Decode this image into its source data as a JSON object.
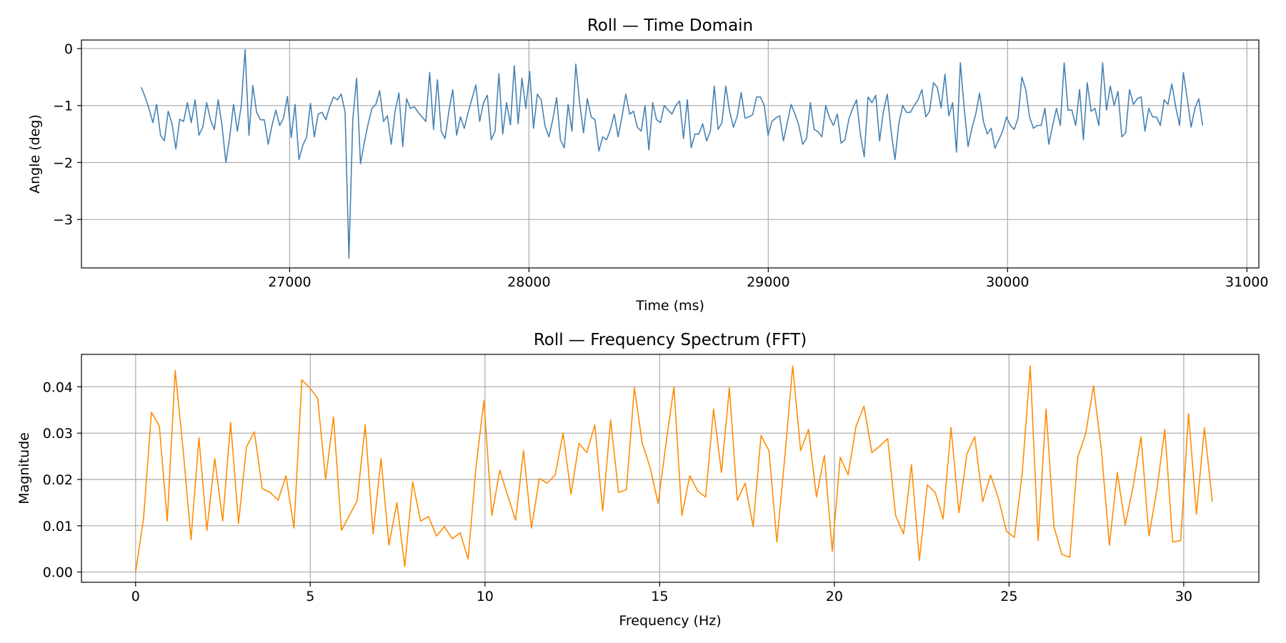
{
  "chart_data": [
    {
      "type": "line",
      "title": "Roll — Time Domain",
      "xlabel": "Time (ms)",
      "ylabel": "Angle (deg)",
      "xlim": [
        26130,
        31050
      ],
      "ylim": [
        -3.85,
        0.15
      ],
      "grid": true,
      "xticks": [
        27000,
        28000,
        29000,
        30000,
        31000
      ],
      "xtick_labels": [
        "27000",
        "28000",
        "29000",
        "30000",
        "31000"
      ],
      "yticks": [
        0,
        -1,
        -2,
        -3
      ],
      "ytick_labels": [
        "0",
        "−1",
        "−2",
        "−3"
      ],
      "color": "#4682b4",
      "series": [
        {
          "name": "Roll",
          "x_start": 26380,
          "x_end": 30815,
          "values": [
            -0.68,
            -0.85,
            -1.05,
            -1.3,
            -0.98,
            -1.52,
            -1.62,
            -1.1,
            -1.32,
            -1.76,
            -1.24,
            -1.28,
            -0.95,
            -1.3,
            -0.9,
            -1.52,
            -1.38,
            -0.95,
            -1.25,
            -1.42,
            -0.9,
            -1.35,
            -2.0,
            -1.55,
            -0.98,
            -1.45,
            -1.0,
            -0.02,
            -1.52,
            -0.65,
            -1.12,
            -1.25,
            -1.25,
            -1.68,
            -1.35,
            -1.08,
            -1.35,
            -1.22,
            -0.84,
            -1.56,
            -0.98,
            -1.95,
            -1.7,
            -1.55,
            -0.96,
            -1.55,
            -1.15,
            -1.12,
            -1.25,
            -1.02,
            -0.85,
            -0.9,
            -0.8,
            -1.12,
            -3.68,
            -1.25,
            -0.52,
            -2.02,
            -1.65,
            -1.32,
            -1.05,
            -0.98,
            -0.74,
            -1.28,
            -1.18,
            -1.68,
            -1.1,
            -0.78,
            -1.72,
            -0.88,
            -1.05,
            -1.02,
            -1.12,
            -1.2,
            -1.28,
            -0.42,
            -1.42,
            -0.55,
            -1.45,
            -1.58,
            -1.1,
            -0.72,
            -1.52,
            -1.2,
            -1.4,
            -1.12,
            -0.88,
            -0.64,
            -1.28,
            -0.95,
            -0.82,
            -1.6,
            -1.45,
            -0.44,
            -1.5,
            -0.95,
            -1.34,
            -0.3,
            -1.32,
            -0.52,
            -1.05,
            -0.4,
            -1.4,
            -0.8,
            -0.9,
            -1.36,
            -1.55,
            -1.25,
            -0.86,
            -1.6,
            -1.74,
            -0.98,
            -1.45,
            -0.27,
            -0.95,
            -1.48,
            -0.88,
            -1.2,
            -1.25,
            -1.8,
            -1.55,
            -1.6,
            -1.42,
            -1.15,
            -1.55,
            -1.2,
            -0.8,
            -1.15,
            -1.1,
            -1.38,
            -1.45,
            -1.0,
            -1.78,
            -0.95,
            -1.25,
            -1.3,
            -1.0,
            -1.08,
            -1.15,
            -1.0,
            -0.92,
            -1.58,
            -0.9,
            -1.74,
            -1.5,
            -1.5,
            -1.32,
            -1.62,
            -1.45,
            -0.66,
            -1.42,
            -1.3,
            -0.66,
            -1.1,
            -1.38,
            -1.18,
            -0.77,
            -1.22,
            -1.2,
            -1.16,
            -0.85,
            -0.85,
            -1.0,
            -1.52,
            -1.28,
            -1.22,
            -1.18,
            -1.62,
            -1.3,
            -0.98,
            -1.15,
            -1.35,
            -1.68,
            -1.58,
            -0.95,
            -1.42,
            -1.46,
            -1.55,
            -1.0,
            -1.22,
            -1.35,
            -1.15,
            -1.66,
            -1.6,
            -1.24,
            -1.05,
            -0.9,
            -1.5,
            -1.9,
            -0.85,
            -0.95,
            -0.82,
            -1.62,
            -1.1,
            -0.8,
            -1.45,
            -1.95,
            -1.32,
            -1.0,
            -1.12,
            -1.12,
            -1.0,
            -0.9,
            -0.72,
            -1.2,
            -1.1,
            -0.6,
            -0.68,
            -1.04,
            -0.45,
            -1.18,
            -0.95,
            -1.82,
            -0.25,
            -1.05,
            -1.72,
            -1.4,
            -1.15,
            -0.78,
            -1.28,
            -1.5,
            -1.4,
            -1.75,
            -1.6,
            -1.45,
            -1.2,
            -1.35,
            -1.42,
            -1.22,
            -0.5,
            -0.72,
            -1.2,
            -1.4,
            -1.35,
            -1.35,
            -1.05,
            -1.68,
            -1.35,
            -1.05,
            -1.35,
            -0.25,
            -1.08,
            -1.08,
            -1.35,
            -0.72,
            -1.6,
            -0.6,
            -1.1,
            -1.05,
            -1.35,
            -0.25,
            -1.08,
            -0.66,
            -1.0,
            -0.75,
            -1.55,
            -1.48,
            -0.72,
            -0.98,
            -0.88,
            -0.85,
            -1.45,
            -1.05,
            -1.2,
            -1.2,
            -1.35,
            -0.9,
            -0.98,
            -0.62,
            -1.02,
            -1.35,
            -0.42,
            -0.88,
            -1.38,
            -1.05,
            -0.88,
            -1.35
          ]
        }
      ]
    },
    {
      "type": "line",
      "title": "Roll — Frequency Spectrum (FFT)",
      "xlabel": "Frequency (Hz)",
      "ylabel": "Magnitude",
      "xlim": [
        -1.55,
        32.15
      ],
      "ylim": [
        -0.0022,
        0.047
      ],
      "grid": true,
      "xticks": [
        0,
        5,
        10,
        15,
        20,
        25,
        30
      ],
      "xtick_labels": [
        "0",
        "5",
        "10",
        "15",
        "20",
        "25",
        "30"
      ],
      "yticks": [
        0.0,
        0.01,
        0.02,
        0.03,
        0.04
      ],
      "ytick_labels": [
        "0.00",
        "0.01",
        "0.02",
        "0.03",
        "0.04"
      ],
      "color": "#ff8c00",
      "series": [
        {
          "name": "FFT magnitude",
          "x_start": 0,
          "x_step": 0.2266,
          "values": [
            0.0,
            0.0115,
            0.0345,
            0.0315,
            0.011,
            0.0435,
            0.0265,
            0.007,
            0.029,
            0.009,
            0.0245,
            0.011,
            0.0323,
            0.0105,
            0.027,
            0.0303,
            0.018,
            0.0172,
            0.0155,
            0.0208,
            0.0095,
            0.0415,
            0.0398,
            0.0375,
            0.02,
            0.0335,
            0.009,
            0.0122,
            0.0155,
            0.0318,
            0.0082,
            0.0245,
            0.0058,
            0.015,
            0.0012,
            0.0195,
            0.011,
            0.012,
            0.0078,
            0.0098,
            0.0072,
            0.0085,
            0.0028,
            0.0228,
            0.037,
            0.0122,
            0.022,
            0.0165,
            0.0112,
            0.0262,
            0.0095,
            0.0202,
            0.0192,
            0.021,
            0.03,
            0.0168,
            0.0278,
            0.0258,
            0.0318,
            0.0132,
            0.0328,
            0.0172,
            0.0178,
            0.0398,
            0.0278,
            0.0225,
            0.0148,
            0.0278,
            0.04,
            0.0122,
            0.0208,
            0.0175,
            0.0162,
            0.0352,
            0.0215,
            0.0398,
            0.0155,
            0.0192,
            0.0098,
            0.0295,
            0.0262,
            0.0065,
            0.0248,
            0.0445,
            0.0262,
            0.0308,
            0.0162,
            0.0252,
            0.0045,
            0.0248,
            0.021,
            0.0315,
            0.0358,
            0.0258,
            0.0272,
            0.0288,
            0.0122,
            0.0082,
            0.0232,
            0.0025,
            0.0188,
            0.0172,
            0.0115,
            0.0312,
            0.0128,
            0.0255,
            0.0292,
            0.0152,
            0.021,
            0.0158,
            0.0088,
            0.0075,
            0.0215,
            0.0445,
            0.0068,
            0.0352,
            0.0098,
            0.0038,
            0.0032,
            0.0248,
            0.0298,
            0.0402,
            0.0262,
            0.0058,
            0.0215,
            0.0102,
            0.0185,
            0.0292,
            0.0078,
            0.0178,
            0.0308,
            0.0065,
            0.0068,
            0.0342,
            0.0125,
            0.0312,
            0.0152
          ]
        }
      ]
    }
  ]
}
